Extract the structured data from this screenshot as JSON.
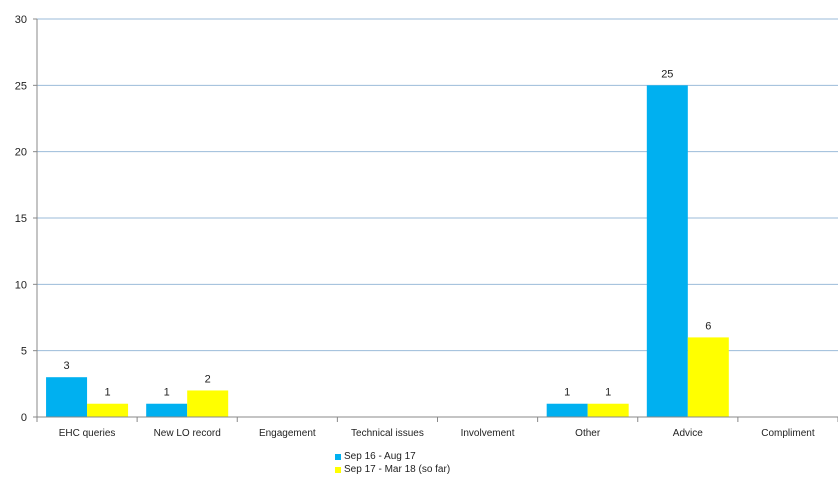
{
  "chart_data": {
    "type": "bar",
    "categories": [
      "EHC queries",
      "New LO record",
      "Engagement",
      "Technical issues",
      "Involvement",
      "Other",
      "Advice",
      "Compliment"
    ],
    "series": [
      {
        "name": "Sep 16 - Aug 17",
        "values": [
          3,
          1,
          0,
          0,
          0,
          1,
          25,
          0
        ],
        "color": "#00b0f0"
      },
      {
        "name": "Sep 17 - Mar 18 (so far)",
        "values": [
          1,
          2,
          0,
          0,
          0,
          1,
          6,
          0
        ],
        "color": "#ffff00"
      }
    ],
    "ylim": [
      0,
      30
    ],
    "yticks": [
      0,
      5,
      10,
      15,
      20,
      25,
      30
    ],
    "grid": true,
    "legend_position": "bottom",
    "title": "",
    "xlabel": "",
    "ylabel": ""
  }
}
